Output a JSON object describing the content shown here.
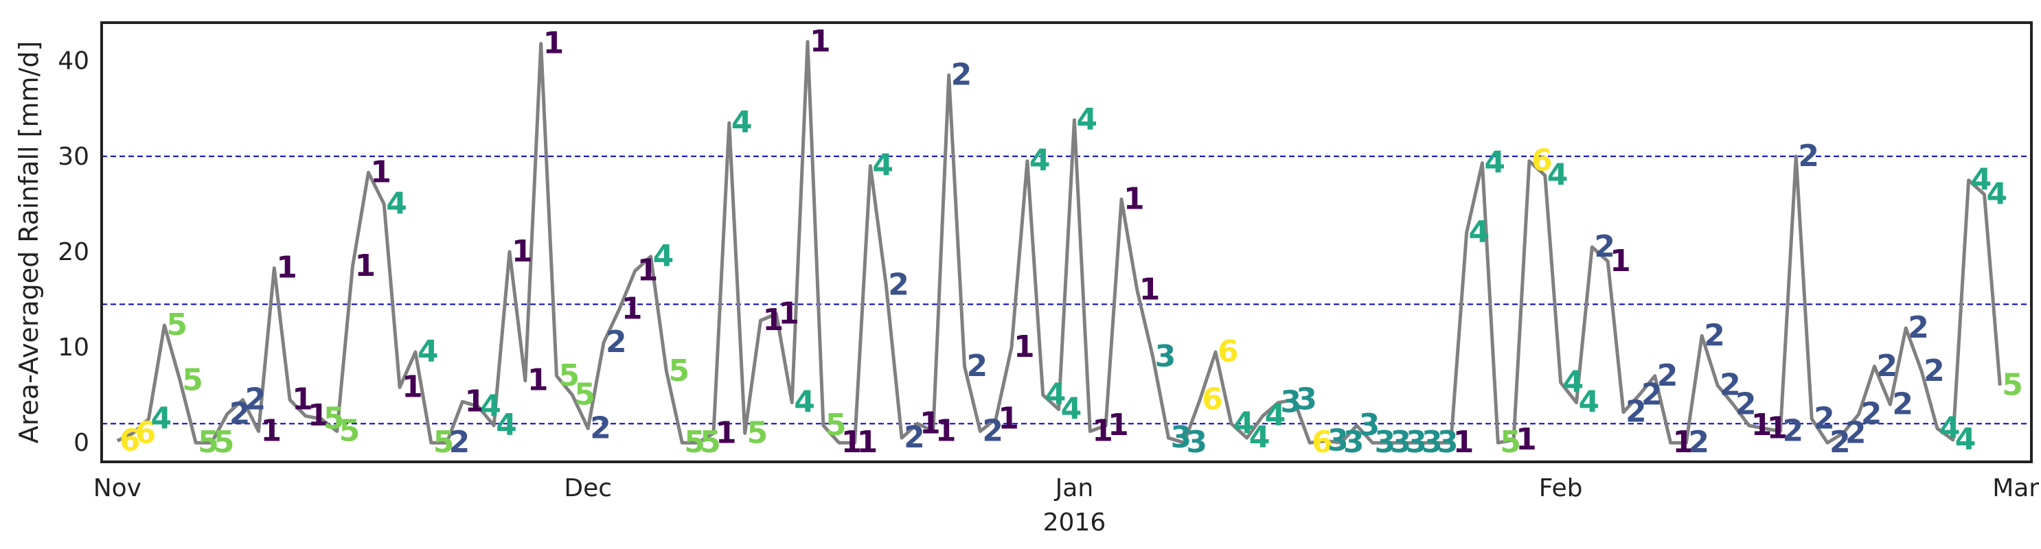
{
  "chart_data": {
    "type": "line",
    "title": "",
    "ylabel": "Area-Averaged Rainfall [mm/d]",
    "xlabel": "",
    "year_label": "2016",
    "x_start": "2015-10-31",
    "x_end": "2016-03-02",
    "ylim": [
      -2,
      44
    ],
    "yticks": [
      0,
      10,
      20,
      30,
      40
    ],
    "xticks": [
      {
        "date": "2015-11-01",
        "label": "Nov"
      },
      {
        "date": "2015-12-01",
        "label": "Dec"
      },
      {
        "date": "2016-01-01",
        "label": "Jan"
      },
      {
        "date": "2016-02-01",
        "label": "Feb"
      },
      {
        "date": "2016-03-01",
        "label": "Mar"
      }
    ],
    "thresholds": [
      2.0,
      14.5,
      30.0
    ],
    "threshold_color": "#0000cc",
    "line_color": "#808080",
    "grid": false,
    "legend": "none",
    "cluster_colors": {
      "1": "#440154",
      "2": "#3b528b",
      "3": "#21918c",
      "4": "#21a884",
      "5": "#7ad151",
      "6": "#fde725"
    },
    "points": [
      {
        "date": "2015-11-01",
        "value": 0.2,
        "cluster": "6"
      },
      {
        "date": "2015-11-02",
        "value": 1.0,
        "cluster": "6"
      },
      {
        "date": "2015-11-03",
        "value": 2.5,
        "cluster": "4"
      },
      {
        "date": "2015-11-04",
        "value": 12.3,
        "cluster": "5"
      },
      {
        "date": "2015-11-05",
        "value": 6.5,
        "cluster": "5"
      },
      {
        "date": "2015-11-06",
        "value": 0.0,
        "cluster": "5"
      },
      {
        "date": "2015-11-07",
        "value": 0.0,
        "cluster": "5"
      },
      {
        "date": "2015-11-08",
        "value": 3.0,
        "cluster": "2"
      },
      {
        "date": "2015-11-09",
        "value": 4.5,
        "cluster": "2"
      },
      {
        "date": "2015-11-10",
        "value": 1.2,
        "cluster": "1"
      },
      {
        "date": "2015-11-11",
        "value": 18.3,
        "cluster": "1"
      },
      {
        "date": "2015-11-12",
        "value": 4.5,
        "cluster": "1"
      },
      {
        "date": "2015-11-13",
        "value": 2.8,
        "cluster": "1"
      },
      {
        "date": "2015-11-14",
        "value": 2.5,
        "cluster": "5"
      },
      {
        "date": "2015-11-15",
        "value": 1.2,
        "cluster": "5"
      },
      {
        "date": "2015-11-16",
        "value": 18.5,
        "cluster": "1"
      },
      {
        "date": "2015-11-17",
        "value": 28.3,
        "cluster": "1"
      },
      {
        "date": "2015-11-18",
        "value": 25.0,
        "cluster": "4"
      },
      {
        "date": "2015-11-19",
        "value": 5.8,
        "cluster": "1"
      },
      {
        "date": "2015-11-20",
        "value": 9.5,
        "cluster": "4"
      },
      {
        "date": "2015-11-21",
        "value": 0.0,
        "cluster": "5"
      },
      {
        "date": "2015-11-22",
        "value": 0.0,
        "cluster": "2"
      },
      {
        "date": "2015-11-23",
        "value": 4.3,
        "cluster": "1"
      },
      {
        "date": "2015-11-24",
        "value": 3.8,
        "cluster": "4"
      },
      {
        "date": "2015-11-25",
        "value": 1.8,
        "cluster": "4"
      },
      {
        "date": "2015-11-26",
        "value": 20.0,
        "cluster": "1"
      },
      {
        "date": "2015-11-27",
        "value": 6.5,
        "cluster": "1"
      },
      {
        "date": "2015-11-28",
        "value": 41.8,
        "cluster": "1"
      },
      {
        "date": "2015-11-29",
        "value": 7.0,
        "cluster": "5"
      },
      {
        "date": "2015-11-30",
        "value": 5.0,
        "cluster": "5"
      },
      {
        "date": "2015-12-01",
        "value": 1.5,
        "cluster": "2"
      },
      {
        "date": "2015-12-02",
        "value": 10.5,
        "cluster": "2"
      },
      {
        "date": "2015-12-03",
        "value": 14.0,
        "cluster": "1"
      },
      {
        "date": "2015-12-04",
        "value": 18.0,
        "cluster": "1"
      },
      {
        "date": "2015-12-05",
        "value": 19.5,
        "cluster": "4"
      },
      {
        "date": "2015-12-06",
        "value": 7.5,
        "cluster": "5"
      },
      {
        "date": "2015-12-07",
        "value": 0.0,
        "cluster": "5"
      },
      {
        "date": "2015-12-08",
        "value": 0.0,
        "cluster": "5"
      },
      {
        "date": "2015-12-09",
        "value": 1.0,
        "cluster": "1"
      },
      {
        "date": "2015-12-10",
        "value": 33.5,
        "cluster": "4"
      },
      {
        "date": "2015-12-11",
        "value": 1.0,
        "cluster": "5"
      },
      {
        "date": "2015-12-12",
        "value": 12.8,
        "cluster": "1"
      },
      {
        "date": "2015-12-13",
        "value": 13.5,
        "cluster": "1"
      },
      {
        "date": "2015-12-14",
        "value": 4.2,
        "cluster": "4"
      },
      {
        "date": "2015-12-15",
        "value": 42.0,
        "cluster": "1"
      },
      {
        "date": "2015-12-16",
        "value": 1.8,
        "cluster": "5"
      },
      {
        "date": "2015-12-17",
        "value": 0.0,
        "cluster": "1"
      },
      {
        "date": "2015-12-18",
        "value": 0.0,
        "cluster": "1"
      },
      {
        "date": "2015-12-19",
        "value": 29.0,
        "cluster": "4"
      },
      {
        "date": "2015-12-20",
        "value": 16.5,
        "cluster": "2"
      },
      {
        "date": "2015-12-21",
        "value": 0.5,
        "cluster": "2"
      },
      {
        "date": "2015-12-22",
        "value": 2.0,
        "cluster": "1"
      },
      {
        "date": "2015-12-23",
        "value": 1.2,
        "cluster": "1"
      },
      {
        "date": "2015-12-24",
        "value": 38.5,
        "cluster": "2"
      },
      {
        "date": "2015-12-25",
        "value": 8.0,
        "cluster": "2"
      },
      {
        "date": "2015-12-26",
        "value": 1.2,
        "cluster": "2"
      },
      {
        "date": "2015-12-27",
        "value": 2.5,
        "cluster": "1"
      },
      {
        "date": "2015-12-28",
        "value": 10.0,
        "cluster": "1"
      },
      {
        "date": "2015-12-29",
        "value": 29.5,
        "cluster": "4"
      },
      {
        "date": "2015-12-30",
        "value": 5.0,
        "cluster": "4"
      },
      {
        "date": "2015-12-31",
        "value": 3.5,
        "cluster": "4"
      },
      {
        "date": "2016-01-01",
        "value": 33.8,
        "cluster": "4"
      },
      {
        "date": "2016-01-02",
        "value": 1.2,
        "cluster": "1"
      },
      {
        "date": "2016-01-03",
        "value": 1.8,
        "cluster": "1"
      },
      {
        "date": "2016-01-04",
        "value": 25.5,
        "cluster": "1"
      },
      {
        "date": "2016-01-05",
        "value": 16.0,
        "cluster": "1"
      },
      {
        "date": "2016-01-06",
        "value": 9.0,
        "cluster": "3"
      },
      {
        "date": "2016-01-07",
        "value": 0.5,
        "cluster": "3"
      },
      {
        "date": "2016-01-08",
        "value": 0.0,
        "cluster": "3"
      },
      {
        "date": "2016-01-09",
        "value": 4.5,
        "cluster": "6"
      },
      {
        "date": "2016-01-10",
        "value": 9.5,
        "cluster": "6"
      },
      {
        "date": "2016-01-11",
        "value": 2.0,
        "cluster": "4"
      },
      {
        "date": "2016-01-12",
        "value": 0.5,
        "cluster": "4"
      },
      {
        "date": "2016-01-13",
        "value": 2.8,
        "cluster": "4"
      },
      {
        "date": "2016-01-14",
        "value": 4.2,
        "cluster": "3"
      },
      {
        "date": "2016-01-15",
        "value": 4.5,
        "cluster": "3"
      },
      {
        "date": "2016-01-16",
        "value": 0.0,
        "cluster": "6"
      },
      {
        "date": "2016-01-17",
        "value": 0.2,
        "cluster": "3"
      },
      {
        "date": "2016-01-18",
        "value": 0.0,
        "cluster": "3"
      },
      {
        "date": "2016-01-19",
        "value": 1.8,
        "cluster": "3"
      },
      {
        "date": "2016-01-20",
        "value": 0.0,
        "cluster": "3"
      },
      {
        "date": "2016-01-21",
        "value": 0.0,
        "cluster": "3"
      },
      {
        "date": "2016-01-22",
        "value": 0.0,
        "cluster": "3"
      },
      {
        "date": "2016-01-23",
        "value": 0.0,
        "cluster": "3"
      },
      {
        "date": "2016-01-24",
        "value": 0.0,
        "cluster": "3"
      },
      {
        "date": "2016-01-25",
        "value": 0.0,
        "cluster": "1"
      },
      {
        "date": "2016-01-26",
        "value": 22.0,
        "cluster": "4"
      },
      {
        "date": "2016-01-27",
        "value": 29.3,
        "cluster": "4"
      },
      {
        "date": "2016-01-28",
        "value": 0.0,
        "cluster": "5"
      },
      {
        "date": "2016-01-29",
        "value": 0.3,
        "cluster": "1"
      },
      {
        "date": "2016-01-30",
        "value": 29.5,
        "cluster": "6"
      },
      {
        "date": "2016-01-31",
        "value": 28.0,
        "cluster": "4"
      },
      {
        "date": "2016-02-01",
        "value": 6.3,
        "cluster": "4"
      },
      {
        "date": "2016-02-02",
        "value": 4.2,
        "cluster": "4"
      },
      {
        "date": "2016-02-03",
        "value": 20.5,
        "cluster": "2"
      },
      {
        "date": "2016-02-04",
        "value": 19.0,
        "cluster": "1"
      },
      {
        "date": "2016-02-05",
        "value": 3.2,
        "cluster": "2"
      },
      {
        "date": "2016-02-06",
        "value": 5.0,
        "cluster": "2"
      },
      {
        "date": "2016-02-07",
        "value": 7.0,
        "cluster": "2"
      },
      {
        "date": "2016-02-08",
        "value": 0.0,
        "cluster": "1"
      },
      {
        "date": "2016-02-09",
        "value": 0.0,
        "cluster": "2"
      },
      {
        "date": "2016-02-10",
        "value": 11.2,
        "cluster": "2"
      },
      {
        "date": "2016-02-11",
        "value": 6.0,
        "cluster": "2"
      },
      {
        "date": "2016-02-12",
        "value": 4.0,
        "cluster": "2"
      },
      {
        "date": "2016-02-13",
        "value": 1.8,
        "cluster": "1"
      },
      {
        "date": "2016-02-14",
        "value": 1.5,
        "cluster": "1"
      },
      {
        "date": "2016-02-15",
        "value": 1.2,
        "cluster": "2"
      },
      {
        "date": "2016-02-16",
        "value": 30.0,
        "cluster": "2"
      },
      {
        "date": "2016-02-17",
        "value": 2.5,
        "cluster": "2"
      },
      {
        "date": "2016-02-18",
        "value": 0.0,
        "cluster": "2"
      },
      {
        "date": "2016-02-19",
        "value": 1.0,
        "cluster": "2"
      },
      {
        "date": "2016-02-20",
        "value": 3.0,
        "cluster": "2"
      },
      {
        "date": "2016-02-21",
        "value": 8.0,
        "cluster": "2"
      },
      {
        "date": "2016-02-22",
        "value": 4.0,
        "cluster": "2"
      },
      {
        "date": "2016-02-23",
        "value": 12.0,
        "cluster": "2"
      },
      {
        "date": "2016-02-24",
        "value": 7.5,
        "cluster": "2"
      },
      {
        "date": "2016-02-25",
        "value": 1.5,
        "cluster": "4"
      },
      {
        "date": "2016-02-26",
        "value": 0.3,
        "cluster": "4"
      },
      {
        "date": "2016-02-27",
        "value": 27.5,
        "cluster": "4"
      },
      {
        "date": "2016-02-28",
        "value": 26.0,
        "cluster": "4"
      },
      {
        "date": "2016-02-29",
        "value": 6.0,
        "cluster": "5"
      }
    ]
  }
}
